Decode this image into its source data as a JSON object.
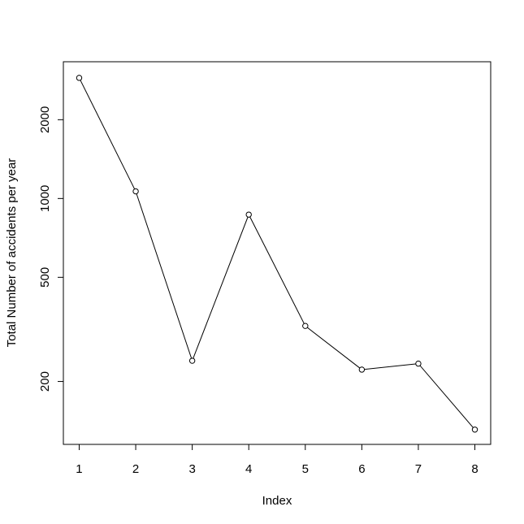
{
  "chart_data": {
    "type": "line",
    "x_label": "Index",
    "y_label": "Total Number of accidents per year",
    "x": [
      1,
      2,
      3,
      4,
      5,
      6,
      7,
      8
    ],
    "series": [
      {
        "color": "#000000",
        "values": [
          2890,
          1065,
          240,
          868,
          326,
          222,
          234,
          131
        ]
      }
    ],
    "xlim": [
      0.72,
      8.28
    ],
    "xticks": [
      1,
      2,
      3,
      4,
      5,
      6,
      7,
      8
    ],
    "ylim": [
      115,
      3330
    ],
    "yticks": [
      200,
      500,
      1000,
      2000
    ],
    "y_log": true
  }
}
